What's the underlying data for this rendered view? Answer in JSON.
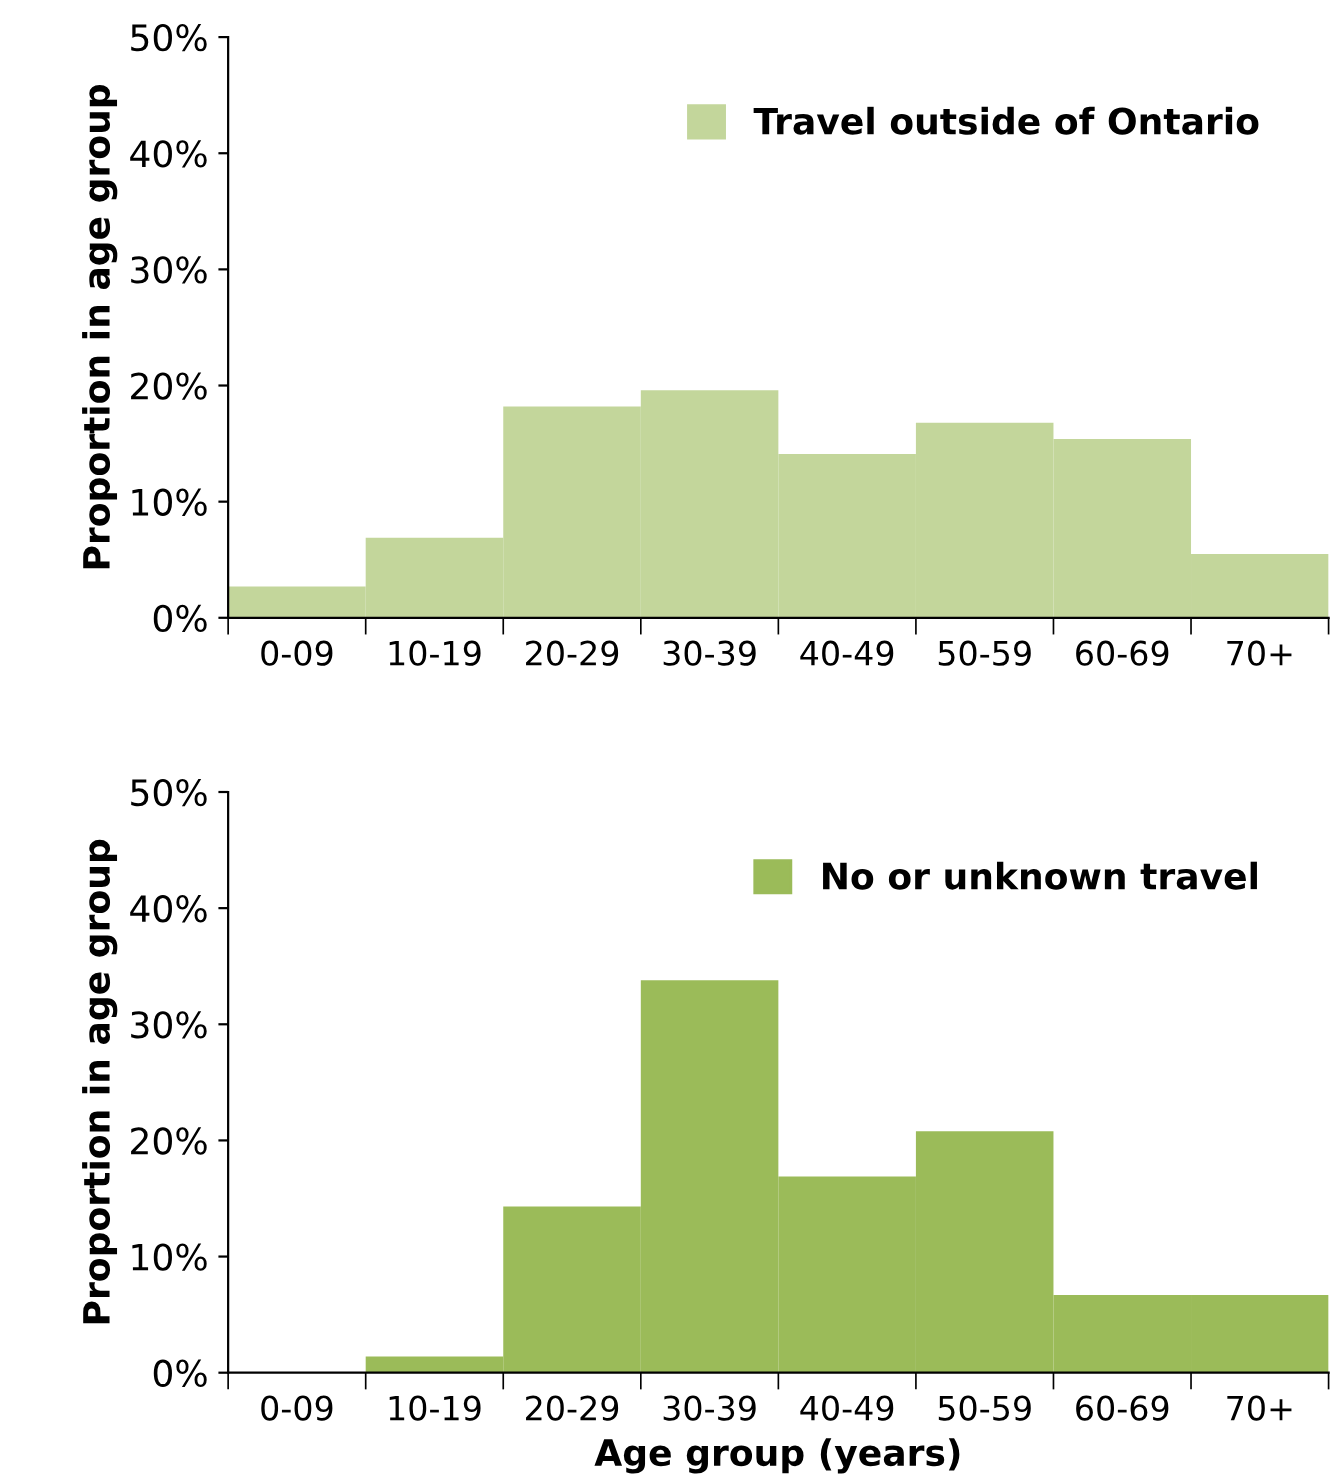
{
  "chart_data": [
    {
      "type": "bar",
      "ylabel": "Proportion in age group",
      "categories": [
        "0-09",
        "10-19",
        "20-29",
        "30-39",
        "40-49",
        "50-59",
        "60-69",
        "70+"
      ],
      "series": [
        {
          "name": "Travel outside of Ontario",
          "color": "#c3d69b",
          "values": [
            2.7,
            6.9,
            18.2,
            19.6,
            14.1,
            16.8,
            15.4,
            5.5
          ]
        }
      ],
      "ylim": [
        0,
        50
      ],
      "yticks": [
        {
          "value": 0,
          "label": "0%"
        },
        {
          "value": 10,
          "label": "10%"
        },
        {
          "value": 20,
          "label": "20%"
        },
        {
          "value": 30,
          "label": "30%"
        },
        {
          "value": 40,
          "label": "40%"
        },
        {
          "value": 50,
          "label": "50%"
        }
      ],
      "legend": "top right",
      "grid": false
    },
    {
      "type": "bar",
      "ylabel": "Proportion in age group",
      "xlabel": "Age group (years)",
      "categories": [
        "0-09",
        "10-19",
        "20-29",
        "30-39",
        "40-49",
        "50-59",
        "60-69",
        "70+"
      ],
      "series": [
        {
          "name": "No or unknown travel",
          "color": "#9bbb59",
          "values": [
            0,
            1.4,
            14.3,
            33.8,
            16.9,
            20.8,
            6.7,
            6.7
          ]
        }
      ],
      "ylim": [
        0,
        50
      ],
      "yticks": [
        {
          "value": 0,
          "label": "0%"
        },
        {
          "value": 10,
          "label": "10%"
        },
        {
          "value": 20,
          "label": "20%"
        },
        {
          "value": 30,
          "label": "30%"
        },
        {
          "value": 40,
          "label": "40%"
        },
        {
          "value": 50,
          "label": "50%"
        }
      ],
      "legend": "top right",
      "grid": false
    }
  ]
}
